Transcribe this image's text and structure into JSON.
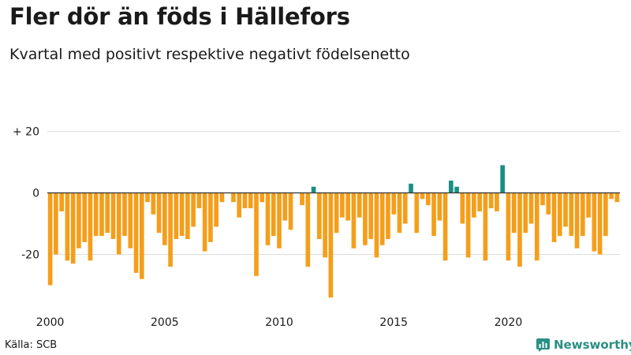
{
  "title": "Fler dör än föds i Hällefors",
  "subtitle": "Kvartal med positivt respektive negativt födelsenetto",
  "source": "Källa: SCB",
  "brand": "Newsworthy",
  "colors": {
    "negative": "#f59e1a",
    "positive": "#1a8f84",
    "grid": "#dddddd",
    "zero": "#333333"
  },
  "chart_data": {
    "type": "bar",
    "title": "Fler dör än föds i Hällefors",
    "subtitle": "Kvartal med positivt respektive negativt födelsenetto",
    "x_start": 2000.0,
    "step": 0.25,
    "xlim": [
      2000.0,
      2024.75
    ],
    "ylim": [
      -35,
      25
    ],
    "yticks": [
      20,
      0,
      -20
    ],
    "ytick_labels": [
      "+ 20",
      "0",
      "-20"
    ],
    "xticks": [
      2000,
      2005,
      2010,
      2015,
      2020
    ],
    "xtick_labels": [
      "2000",
      "2005",
      "2010",
      "2015",
      "2020"
    ],
    "values": [
      -30,
      -20,
      -6,
      -22,
      -23,
      -18,
      -16,
      -22,
      -14,
      -14,
      -13,
      -15,
      -20,
      -14,
      -18,
      -26,
      -28,
      -3,
      -7,
      -13,
      -17,
      -24,
      -15,
      -14,
      -15,
      -11,
      -5,
      -19,
      -16,
      -11,
      -3,
      0,
      -3,
      -8,
      -5,
      -5,
      -27,
      -3,
      -17,
      -14,
      -18,
      -9,
      -12,
      0,
      -4,
      -24,
      2,
      -15,
      -21,
      -34,
      -13,
      -8,
      -9,
      -18,
      -8,
      -17,
      -15,
      -21,
      -17,
      -15,
      -7,
      -13,
      -10,
      3,
      -13,
      -2,
      -4,
      -14,
      -9,
      -22,
      4,
      2,
      -10,
      -21,
      -8,
      -6,
      -22,
      -5,
      -6,
      9,
      -22,
      -13,
      -24,
      -13,
      -10,
      -22,
      -4,
      -7,
      -16,
      -14,
      -11,
      -14,
      -18,
      -14,
      -8,
      -19,
      -20,
      -14,
      -2,
      -3
    ]
  }
}
